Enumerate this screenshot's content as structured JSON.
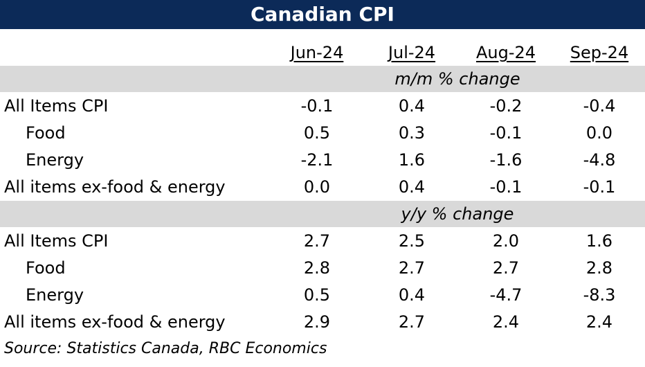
{
  "title": "Canadian CPI",
  "columns": [
    "Jun-24",
    "Jul-24",
    "Aug-24",
    "Sep-24"
  ],
  "sections": [
    {
      "label": "m/m % change",
      "rows": [
        {
          "label": "All Items CPI",
          "indent": false,
          "values": [
            "-0.1",
            "0.4",
            "-0.2",
            "-0.4"
          ]
        },
        {
          "label": "Food",
          "indent": true,
          "values": [
            "0.5",
            "0.3",
            "-0.1",
            "0.0"
          ]
        },
        {
          "label": "Energy",
          "indent": true,
          "values": [
            "-2.1",
            "1.6",
            "-1.6",
            "-4.8"
          ]
        },
        {
          "label": "All items ex-food & energy",
          "indent": false,
          "values": [
            "0.0",
            "0.4",
            "-0.1",
            "-0.1"
          ]
        }
      ]
    },
    {
      "label": "y/y % change",
      "rows": [
        {
          "label": "All Items CPI",
          "indent": false,
          "values": [
            "2.7",
            "2.5",
            "2.0",
            "1.6"
          ]
        },
        {
          "label": "Food",
          "indent": true,
          "values": [
            "2.8",
            "2.7",
            "2.7",
            "2.8"
          ]
        },
        {
          "label": "Energy",
          "indent": true,
          "values": [
            "0.5",
            "0.4",
            "-4.7",
            "-8.3"
          ]
        },
        {
          "label": "All items ex-food & energy",
          "indent": false,
          "values": [
            "2.9",
            "2.7",
            "2.4",
            "2.4"
          ]
        }
      ]
    }
  ],
  "source": "Source:  Statistics Canada, RBC Economics",
  "colors": {
    "title_bg": "#0c2a58",
    "band_bg": "#d9d9d9"
  },
  "chart_data": {
    "type": "table",
    "title": "Canadian CPI",
    "categories": [
      "Jun-24",
      "Jul-24",
      "Aug-24",
      "Sep-24"
    ],
    "series": [
      {
        "name": "m/m % change: All Items CPI",
        "values": [
          -0.1,
          0.4,
          -0.2,
          -0.4
        ]
      },
      {
        "name": "m/m % change: Food",
        "values": [
          0.5,
          0.3,
          -0.1,
          0.0
        ]
      },
      {
        "name": "m/m % change: Energy",
        "values": [
          -2.1,
          1.6,
          -1.6,
          -4.8
        ]
      },
      {
        "name": "m/m % change: All items ex-food & energy",
        "values": [
          0.0,
          0.4,
          -0.1,
          -0.1
        ]
      },
      {
        "name": "y/y % change: All Items CPI",
        "values": [
          2.7,
          2.5,
          2.0,
          1.6
        ]
      },
      {
        "name": "y/y % change: Food",
        "values": [
          2.8,
          2.7,
          2.7,
          2.8
        ]
      },
      {
        "name": "y/y % change: Energy",
        "values": [
          0.5,
          0.4,
          -4.7,
          -8.3
        ]
      },
      {
        "name": "y/y % change: All items ex-food & energy",
        "values": [
          2.9,
          2.7,
          2.4,
          2.4
        ]
      }
    ]
  }
}
